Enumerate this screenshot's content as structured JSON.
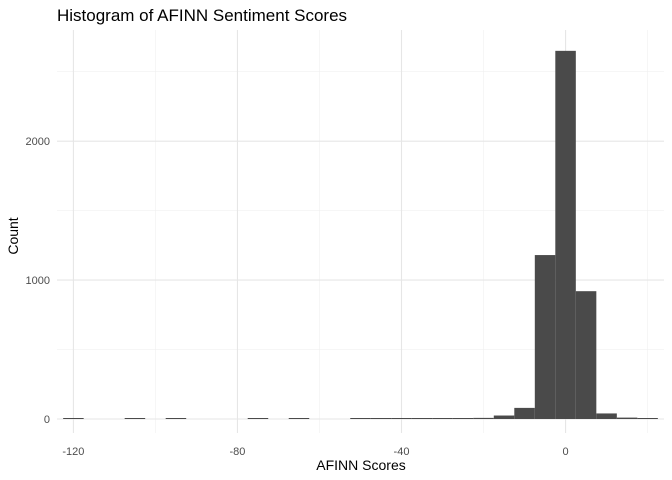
{
  "chart_data": {
    "type": "bar",
    "title": "Histogram of AFINN  Sentiment Scores",
    "xlabel": "AFINN  Scores",
    "ylabel": "Count",
    "xlim": [
      -124,
      24
    ],
    "ylim": [
      0,
      2800
    ],
    "x_ticks": [
      -120,
      -80,
      -40,
      0
    ],
    "y_ticks": [
      0,
      1000,
      2000
    ],
    "bin_width": 5,
    "bins": [
      {
        "x": -120,
        "count": 2
      },
      {
        "x": -105,
        "count": 2
      },
      {
        "x": -95,
        "count": 2
      },
      {
        "x": -75,
        "count": 2
      },
      {
        "x": -65,
        "count": 2
      },
      {
        "x": -50,
        "count": 2
      },
      {
        "x": -45,
        "count": 2
      },
      {
        "x": -40,
        "count": 2
      },
      {
        "x": -35,
        "count": 4
      },
      {
        "x": -30,
        "count": 4
      },
      {
        "x": -25,
        "count": 4
      },
      {
        "x": -20,
        "count": 8
      },
      {
        "x": -15,
        "count": 25
      },
      {
        "x": -10,
        "count": 80
      },
      {
        "x": -5,
        "count": 1180
      },
      {
        "x": 0,
        "count": 2650
      },
      {
        "x": 5,
        "count": 920
      },
      {
        "x": 10,
        "count": 40
      },
      {
        "x": 15,
        "count": 10
      },
      {
        "x": 20,
        "count": 4
      }
    ],
    "fill_color": "#4a4a4a",
    "grid": true,
    "legend": "none"
  }
}
